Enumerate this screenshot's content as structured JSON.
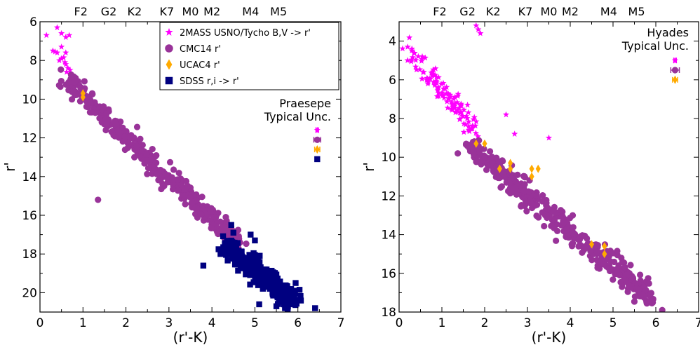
{
  "chart_data": [
    {
      "type": "scatter",
      "panel": "left",
      "xlabel": "(r'-K)",
      "ylabel": "r'",
      "xlim": [
        0,
        7
      ],
      "ylim": [
        21,
        6
      ],
      "y_inverted": true,
      "xticks": [
        0,
        1,
        2,
        3,
        4,
        5,
        6,
        7
      ],
      "yticks": [
        6,
        8,
        10,
        12,
        14,
        16,
        18,
        20
      ],
      "grid": false,
      "legend_position": "top-right",
      "spectral_types": [
        {
          "label": "F2",
          "x": 0.95
        },
        {
          "label": "G2",
          "x": 1.6
        },
        {
          "label": "K2",
          "x": 2.2
        },
        {
          "label": "K7",
          "x": 2.95
        },
        {
          "label": "M0",
          "x": 3.5
        },
        {
          "label": "M2",
          "x": 4.0
        },
        {
          "label": "M4",
          "x": 4.9
        },
        {
          "label": "M5",
          "x": 5.55
        }
      ],
      "annotation": [
        "Praesepe",
        "Typical Unc."
      ],
      "series": [
        {
          "name": "2MASS USNO/Tycho B,V -> r'",
          "marker": "star",
          "color": "#ff00ff",
          "points": [
            [
              0.15,
              6.7
            ],
            [
              0.4,
              6.3
            ],
            [
              0.5,
              6.6
            ],
            [
              0.6,
              6.8
            ],
            [
              0.68,
              6.7
            ],
            [
              0.3,
              7.5
            ],
            [
              0.4,
              7.6
            ],
            [
              0.5,
              7.3
            ],
            [
              0.55,
              7.85
            ],
            [
              0.6,
              7.6
            ],
            [
              0.45,
              8.0
            ],
            [
              0.6,
              8.2
            ],
            [
              0.65,
              8.4
            ],
            [
              0.7,
              8.5
            ],
            [
              0.62,
              8.6
            ],
            [
              0.7,
              8.7
            ],
            [
              0.58,
              8.1
            ],
            [
              0.5,
              7.9
            ],
            [
              0.35,
              7.55
            ]
          ]
        },
        {
          "name": "CMC14 r'",
          "marker": "circle",
          "color": "#993399",
          "band": {
            "x_from": 0.6,
            "x_to": 4.65,
            "y_at_start": 9.0,
            "y_at_end": 17.5,
            "width_r": 0.8,
            "count": 430
          },
          "points": [
            [
              1.35,
              15.2
            ]
          ]
        },
        {
          "name": "UCAC4 r'",
          "marker": "diamond",
          "color": "#ffaa00",
          "points": [
            [
              1.0,
              9.7
            ],
            [
              1.0,
              9.9
            ]
          ]
        },
        {
          "name": "SDSS r,i -> r'",
          "marker": "square",
          "color": "#000080",
          "band": {
            "x_from": 4.3,
            "x_to": 5.9,
            "y_at_start": 17.5,
            "y_at_end": 20.5,
            "width_r": 1.0,
            "count": 340
          },
          "points": [
            [
              3.8,
              18.6
            ],
            [
              6.4,
              20.8
            ],
            [
              5.5,
              20.7
            ],
            [
              5.7,
              20.8
            ],
            [
              5.1,
              20.6
            ],
            [
              5.85,
              20.5
            ],
            [
              4.2,
              18.0
            ],
            [
              4.3,
              17.5
            ],
            [
              4.45,
              16.5
            ],
            [
              4.5,
              16.9
            ],
            [
              4.9,
              17.0
            ],
            [
              5.0,
              17.3
            ],
            [
              5.9,
              20.2
            ]
          ]
        }
      ],
      "typical_uncertainty": [
        {
          "series": "2MASS USNO/Tycho B,V -> r'",
          "x": 6.45,
          "y": 11.6,
          "xerr": 0.03,
          "yerr": 0.12
        },
        {
          "series": "CMC14 r'",
          "x": 6.45,
          "y": 12.1,
          "xerr": 0.08,
          "yerr": 0.1
        },
        {
          "series": "UCAC4 r'",
          "x": 6.45,
          "y": 12.6,
          "xerr": 0.06,
          "yerr": 0.18
        },
        {
          "series": "SDSS r,i -> r'",
          "x": 6.45,
          "y": 13.1,
          "xerr": 0.03,
          "yerr": 0.08
        }
      ]
    },
    {
      "type": "scatter",
      "panel": "right",
      "xlabel": "(r'-K)",
      "ylabel": "r'",
      "xlim": [
        0,
        7
      ],
      "ylim": [
        18,
        3
      ],
      "y_inverted": true,
      "xticks": [
        0,
        1,
        2,
        3,
        4,
        5,
        6,
        7
      ],
      "yticks": [
        4,
        6,
        8,
        10,
        12,
        14,
        16,
        18
      ],
      "grid": false,
      "spectral_types": [
        {
          "label": "F2",
          "x": 0.95
        },
        {
          "label": "G2",
          "x": 1.6
        },
        {
          "label": "K2",
          "x": 2.2
        },
        {
          "label": "K7",
          "x": 2.95
        },
        {
          "label": "M0",
          "x": 3.5
        },
        {
          "label": "M2",
          "x": 4.0
        },
        {
          "label": "M4",
          "x": 4.9
        },
        {
          "label": "M5",
          "x": 5.55
        }
      ],
      "annotation": [
        "Hyades",
        "Typical Unc."
      ],
      "series": [
        {
          "name": "2MASS USNO/Tycho B,V -> r'",
          "marker": "star",
          "color": "#ff00ff",
          "band": {
            "x_from": 0.3,
            "x_to": 1.8,
            "y_at_start": 4.6,
            "y_at_end": 8.8,
            "width_r": 0.8,
            "count": 120
          },
          "points": [
            [
              0.2,
              4.3
            ],
            [
              0.3,
              4.4
            ],
            [
              1.8,
              3.2
            ],
            [
              1.85,
              3.4
            ],
            [
              1.9,
              3.6
            ],
            [
              3.5,
              9.0
            ],
            [
              2.5,
              7.8
            ],
            [
              2.7,
              8.8
            ],
            [
              1.6,
              7.3
            ]
          ]
        },
        {
          "name": "CMC14 r'",
          "marker": "circle",
          "color": "#993399",
          "band": {
            "x_from": 1.6,
            "x_to": 5.9,
            "y_at_start": 9.3,
            "y_at_end": 17.3,
            "width_r": 1.0,
            "count": 460
          },
          "points": [
            [
              6.15,
              17.9
            ],
            [
              3.2,
              12.0
            ],
            [
              2.0,
              10.0
            ]
          ]
        },
        {
          "name": "UCAC4 r'",
          "marker": "diamond",
          "color": "#ffaa00",
          "points": [
            [
              1.8,
              9.3
            ],
            [
              2.0,
              9.3
            ],
            [
              2.35,
              10.6
            ],
            [
              2.6,
              10.3
            ],
            [
              2.6,
              10.6
            ],
            [
              3.1,
              10.6
            ],
            [
              3.25,
              10.6
            ],
            [
              3.1,
              11.0
            ],
            [
              4.5,
              14.5
            ],
            [
              4.8,
              14.6
            ],
            [
              4.8,
              15.0
            ]
          ]
        }
      ],
      "typical_uncertainty": [
        {
          "series": "2MASS USNO/Tycho B,V -> r'",
          "x": 6.45,
          "y": 5.0,
          "xerr": 0.03,
          "yerr": 0.12
        },
        {
          "series": "CMC14 r'",
          "x": 6.45,
          "y": 5.5,
          "xerr": 0.1,
          "yerr": 0.1
        },
        {
          "series": "UCAC4 r'",
          "x": 6.45,
          "y": 6.0,
          "xerr": 0.06,
          "yerr": 0.18
        }
      ]
    }
  ]
}
